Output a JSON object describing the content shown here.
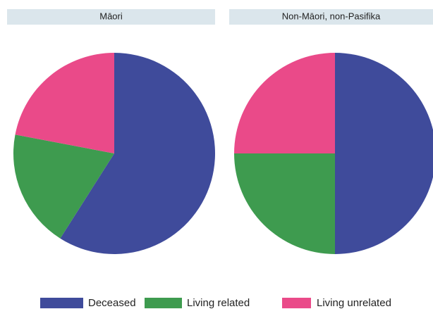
{
  "chart_data": [
    {
      "type": "pie",
      "title": "Māori",
      "categories": [
        "Deceased",
        "Living related",
        "Living unrelated"
      ],
      "values": [
        59,
        19,
        22
      ],
      "colors": [
        "#3f4b9b",
        "#3e9b4f",
        "#ea4a89"
      ]
    },
    {
      "type": "pie",
      "title": "Non-Māori, non-Pasifika",
      "categories": [
        "Deceased",
        "Living related",
        "Living unrelated"
      ],
      "values": [
        50,
        25,
        25
      ],
      "colors": [
        "#3f4b9b",
        "#3e9b4f",
        "#ea4a89"
      ]
    }
  ]
}
